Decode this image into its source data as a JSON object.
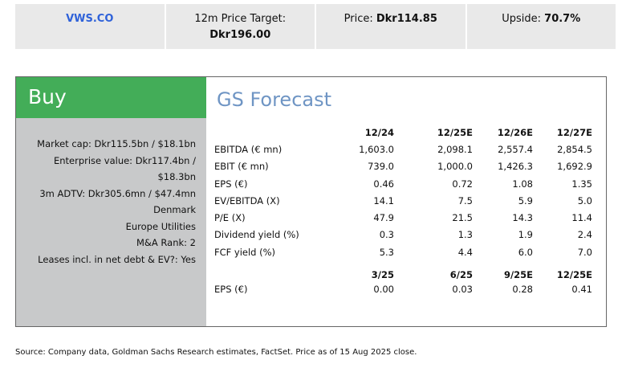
{
  "header": {
    "ticker": "VWS.CO",
    "price_target_label": "12m Price Target:",
    "price_target": "Dkr196.00",
    "price_label": "Price:",
    "price": "Dkr114.85",
    "upside_label": "Upside:",
    "upside": "70.7%"
  },
  "rating": "Buy",
  "facts": [
    "Market cap: Dkr115.5bn / $18.1bn",
    "Enterprise value: Dkr117.4bn / $18.3bn",
    "3m ADTV: Dkr305.6mn / $47.4mn",
    "Denmark",
    "Europe Utilities",
    "M&A Rank: 2",
    "Leases incl. in net debt & EV?: Yes"
  ],
  "forecast": {
    "title": "GS Forecast",
    "annual_headers": [
      "12/24",
      "12/25E",
      "12/26E",
      "12/27E"
    ],
    "annual_rows": [
      {
        "label": "EBITDA (€ mn)",
        "values": [
          "1,603.0",
          "2,098.1",
          "2,557.4",
          "2,854.5"
        ]
      },
      {
        "label": "EBIT (€ mn)",
        "values": [
          "739.0",
          "1,000.0",
          "1,426.3",
          "1,692.9"
        ]
      },
      {
        "label": "EPS (€)",
        "values": [
          "0.46",
          "0.72",
          "1.08",
          "1.35"
        ]
      },
      {
        "label": "EV/EBITDA (X)",
        "values": [
          "14.1",
          "7.5",
          "5.9",
          "5.0"
        ]
      },
      {
        "label": "P/E (X)",
        "values": [
          "47.9",
          "21.5",
          "14.3",
          "11.4"
        ]
      },
      {
        "label": "Dividend yield (%)",
        "values": [
          "0.3",
          "1.3",
          "1.9",
          "2.4"
        ]
      },
      {
        "label": "FCF yield (%)",
        "values": [
          "5.3",
          "4.4",
          "6.0",
          "7.0"
        ]
      }
    ],
    "quarterly_headers": [
      "3/25",
      "6/25",
      "9/25E",
      "12/25E"
    ],
    "quarterly_rows": [
      {
        "label": "EPS (€)",
        "values": [
          "0.00",
          "0.03",
          "0.28",
          "0.41"
        ]
      }
    ]
  },
  "source": "Source: Company data, Goldman Sachs Research estimates, FactSet. Price as of 15 Aug 2025 close."
}
